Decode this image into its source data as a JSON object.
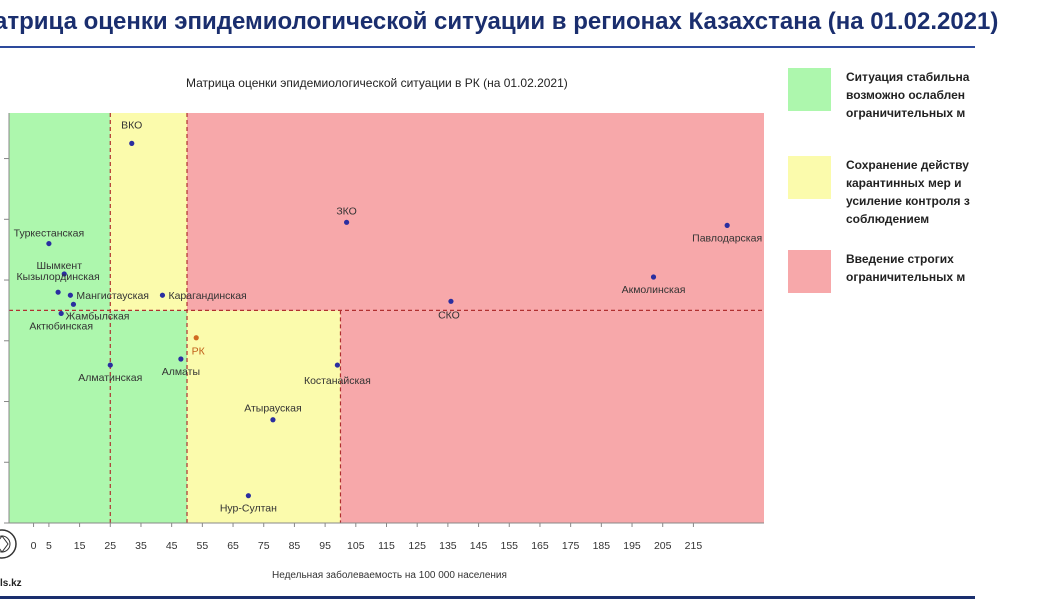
{
  "header": {
    "title": "атрица оценки эпидемиологической ситуации в регионах Казахстана (на 01.02.2021)"
  },
  "footer": {
    "logo_text": "ls.kz"
  },
  "legend": [
    {
      "color": "#adf7ad",
      "text": "Ситуация стабильна\nвозможно ослаблен\nограничительных м"
    },
    {
      "color": "#fbfbac",
      "text": "Сохранение действу\nкарантинных мер и\nусиление контроля з\nсоблюдением"
    },
    {
      "color": "#f7a8aa",
      "text": "Введение строгих\nограничительных м"
    }
  ],
  "chart_data": {
    "type": "scatter",
    "title": "Матрица оценки эпидемиологической ситуации в РК (на 01.02.2021)",
    "xlabel": "Недельная заболеваемость на 100 000 населения",
    "ylabel": "",
    "xlim": [
      -8,
      238
    ],
    "ylim": [
      0,
      6.75
    ],
    "x_ticks": [
      0,
      5,
      15,
      25,
      35,
      45,
      55,
      65,
      75,
      85,
      95,
      105,
      115,
      125,
      135,
      145,
      155,
      165,
      175,
      185,
      195,
      205,
      215
    ],
    "zones": [
      {
        "x": [
          -8,
          50
        ],
        "y": [
          0,
          3.5
        ],
        "color": "#adf7ad"
      },
      {
        "x": [
          -8,
          25
        ],
        "y": [
          3.5,
          6.75
        ],
        "color": "#adf7ad"
      },
      {
        "x": [
          25,
          50
        ],
        "y": [
          3.5,
          6.75
        ],
        "color": "#fbfbac"
      },
      {
        "x": [
          50,
          100
        ],
        "y": [
          0,
          3.5
        ],
        "color": "#fbfbac"
      },
      {
        "x": [
          50,
          238
        ],
        "y": [
          3.5,
          6.75
        ],
        "color": "#f7a8aa"
      },
      {
        "x": [
          100,
          238
        ],
        "y": [
          0,
          3.5
        ],
        "color": "#f7a8aa"
      }
    ],
    "threshold_lines": {
      "x": [
        25,
        50,
        100
      ],
      "y": 3.5,
      "color": "#b03030"
    },
    "points": [
      {
        "label": "ВКО",
        "x": 32,
        "y": 6.25,
        "color": "#2a2ea0"
      },
      {
        "label": "ЗКО",
        "x": 102,
        "y": 4.95,
        "color": "#2a2ea0"
      },
      {
        "label": "Павлодарская",
        "x": 226,
        "y": 4.9,
        "color": "#2a2ea0"
      },
      {
        "label": "Туркестанская",
        "x": 5,
        "y": 4.6,
        "color": "#2a2ea0"
      },
      {
        "label": "Шымкент",
        "x": 10,
        "y": 4.1,
        "color": "#2a2ea0"
      },
      {
        "label": "Кызылординская",
        "x": 8,
        "y": 3.8,
        "color": "#2a2ea0"
      },
      {
        "label": "Мангистауская",
        "x": 12,
        "y": 3.75,
        "color": "#2a2ea0"
      },
      {
        "label": "Жамбылская",
        "x": 13,
        "y": 3.6,
        "color": "#2a2ea0"
      },
      {
        "label": "Актюбинская",
        "x": 9,
        "y": 3.45,
        "color": "#2a2ea0"
      },
      {
        "label": "Карагандинская",
        "x": 42,
        "y": 3.75,
        "color": "#2a2ea0"
      },
      {
        "label": "Акмолинская",
        "x": 202,
        "y": 4.05,
        "color": "#2a2ea0"
      },
      {
        "label": "СКО",
        "x": 136,
        "y": 3.65,
        "color": "#2a2ea0"
      },
      {
        "label": "РК",
        "x": 53,
        "y": 3.05,
        "color": "#d06a20"
      },
      {
        "label": "Алматинская",
        "x": 25,
        "y": 2.6,
        "color": "#2a2ea0"
      },
      {
        "label": "Алматы",
        "x": 48,
        "y": 2.7,
        "color": "#2a2ea0"
      },
      {
        "label": "Костанайская",
        "x": 99,
        "y": 2.6,
        "color": "#2a2ea0"
      },
      {
        "label": "Атырауская",
        "x": 78,
        "y": 1.7,
        "color": "#2a2ea0"
      },
      {
        "label": "Нур-Султан",
        "x": 70,
        "y": 0.45,
        "color": "#2a2ea0"
      }
    ]
  }
}
